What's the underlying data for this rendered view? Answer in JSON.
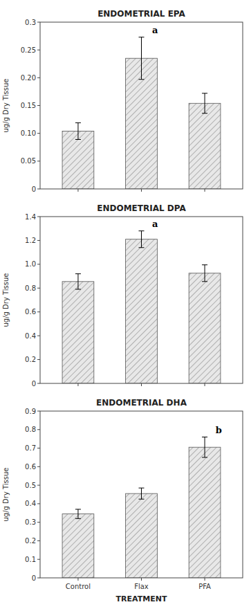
{
  "chart_data": [
    {
      "type": "bar",
      "title": "ENDOMETRIAL EPA",
      "categories": [
        "Control",
        "Flax",
        "PFA"
      ],
      "values": [
        0.104,
        0.235,
        0.154
      ],
      "errors": [
        0.015,
        0.038,
        0.018
      ],
      "color": "#e8e8e8",
      "ylim": [
        0,
        0.3
      ],
      "yticks": [
        0,
        0.05,
        {
          "value": 0.1,
          "label": "0.10"
        },
        0.15,
        {
          "value": 0.2,
          "label": "0.20"
        },
        0.25,
        0.3
      ],
      "ylabel": "ug/g Dry Tissue",
      "annotations": [
        {
          "category": "Flax",
          "text": "a"
        }
      ],
      "tick_labels": "y",
      "grid": false
    },
    {
      "type": "bar",
      "title": "ENDOMETRIAL DPA",
      "categories": [
        "Control",
        "Flax",
        "PFA"
      ],
      "values": [
        0.855,
        1.21,
        0.925
      ],
      "errors": [
        0.065,
        0.07,
        0.07
      ],
      "color": "#e8e8e8",
      "ylim": [
        0,
        1.4
      ],
      "yticks": [
        0,
        0.2,
        0.4,
        0.6,
        0.8,
        {
          "value": 1.0,
          "label": "1.0"
        },
        1.2,
        1.4
      ],
      "ylabel": "ug/g Dry Tissue",
      "annotations": [
        {
          "category": "Flax",
          "text": "a"
        }
      ],
      "tick_labels": "y",
      "grid": false
    },
    {
      "type": "bar",
      "title": "ENDOMETRIAL DHA",
      "categories": [
        "Control",
        "Flax",
        "PFA"
      ],
      "values": [
        0.345,
        0.455,
        0.705
      ],
      "errors": [
        0.025,
        0.03,
        0.055
      ],
      "color": "#e8e8e8",
      "ylim": [
        0,
        0.9
      ],
      "yticks": [
        0,
        0.1,
        0.2,
        0.3,
        0.4,
        0.5,
        0.6,
        0.7,
        0.8,
        0.9
      ],
      "ylabel": "ug/g Dry Tissue",
      "xlabel": "TREATMENT",
      "annotations": [
        {
          "category": "PFA",
          "text": "b"
        }
      ],
      "grid": false
    }
  ]
}
